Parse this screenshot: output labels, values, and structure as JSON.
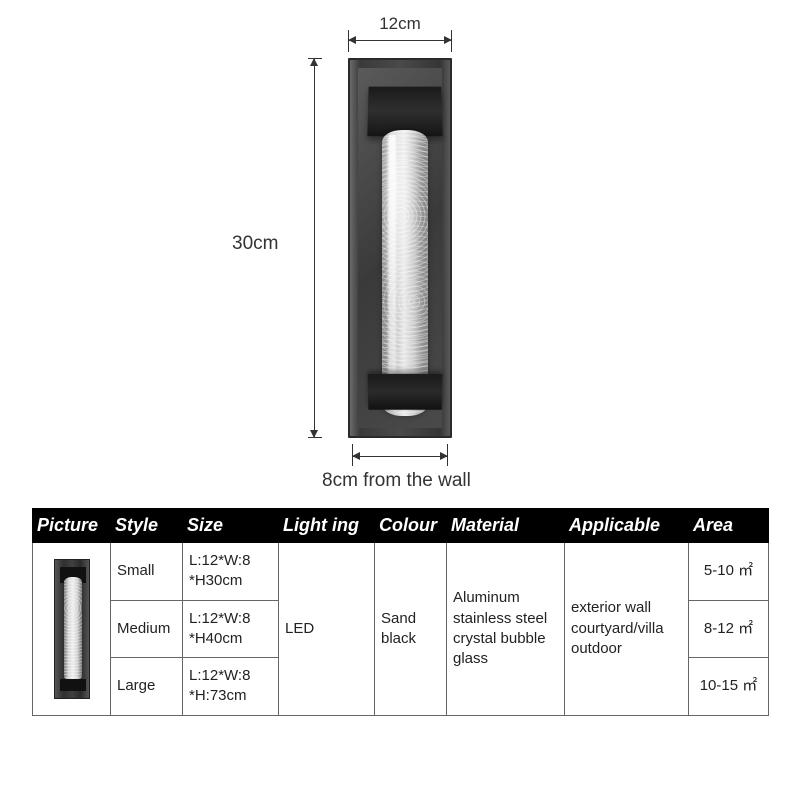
{
  "diagram": {
    "width_label": "12cm",
    "height_label": "30cm",
    "depth_label": "8cm from the wall",
    "colors": {
      "dim_line": "#333333",
      "backplate": "#3a3a3a",
      "bracket": "#1a1a1a",
      "tube_light": "#e8e8e8",
      "tube_dark": "#6a6a6a"
    }
  },
  "table": {
    "header_bg": "#000000",
    "header_fg": "#ffffff",
    "border_color": "#666666",
    "columns": [
      "Picture",
      "Style",
      "Size",
      "Light ing",
      "Colour",
      "Material",
      "Applicable",
      "Area"
    ],
    "lighting": "LED",
    "colour": "Sand black",
    "material": "Aluminum stainless steel crystal bubble glass",
    "applicable": "exterior wall courtyard/villa outdoor",
    "rows": [
      {
        "style": "Small",
        "size": "L:12*W:8 *H30cm",
        "area": "5-10 ㎡"
      },
      {
        "style": "Medium",
        "size": "L:12*W:8 *H40cm",
        "area": "8-12 ㎡"
      },
      {
        "style": "Large",
        "size": "L:12*W:8 *H:73cm",
        "area": "10-15 ㎡"
      }
    ]
  }
}
